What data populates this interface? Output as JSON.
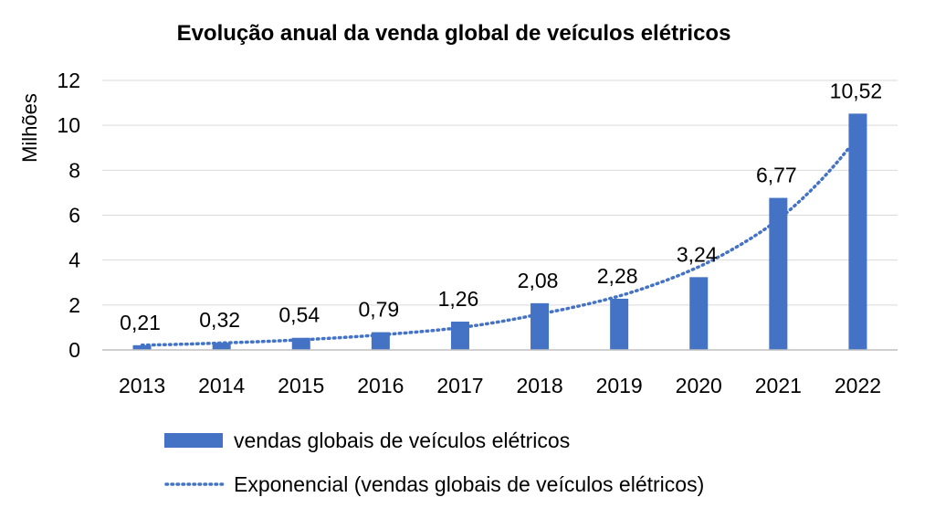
{
  "colors": {
    "bar": "#4472C4",
    "trend": "#4472C4",
    "grid": "#d9d9d9",
    "axis": "#bfbfbf"
  },
  "chart_data": {
    "type": "bar",
    "title": "Evolução anual da venda global de veículos elétricos",
    "ylabel": "Milhões",
    "xlabel": "",
    "categories": [
      "2013",
      "2014",
      "2015",
      "2016",
      "2017",
      "2018",
      "2019",
      "2020",
      "2021",
      "2022"
    ],
    "series": [
      {
        "name": "vendas globais de veículos elétricos",
        "values": [
          0.21,
          0.32,
          0.54,
          0.79,
          1.26,
          2.08,
          2.28,
          3.24,
          6.77,
          10.52
        ],
        "labels": [
          "0,21",
          "0,32",
          "0,54",
          "0,79",
          "1,26",
          "2,08",
          "2,28",
          "3,24",
          "6,77",
          "10,52"
        ]
      }
    ],
    "trendline": {
      "type": "exponential",
      "name": "Exponencial (vendas globais de veículos elétricos)",
      "values": [
        0.21,
        0.31,
        0.45,
        0.67,
        0.99,
        1.6,
        2.4,
        3.7,
        5.8,
        9.5
      ]
    },
    "yticks": [
      0,
      2,
      4,
      6,
      8,
      10,
      12
    ],
    "ylim": [
      0,
      12
    ],
    "grid": true,
    "legend": "bottom"
  }
}
